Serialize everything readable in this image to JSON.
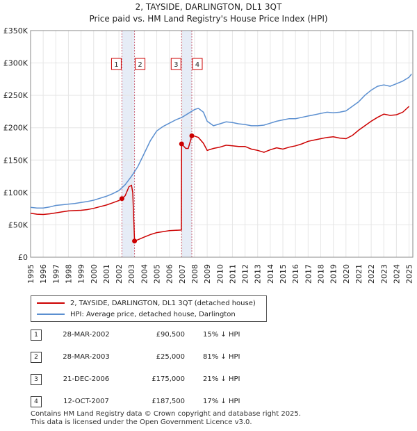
{
  "title_line1": "2, TAYSIDE, DARLINGTON, DL1 3QT",
  "title_line2": "Price paid vs. HM Land Registry's House Price Index (HPI)",
  "chart_data": {
    "type": "line",
    "x_range": [
      1995,
      2025.3
    ],
    "ylim": [
      0,
      350000
    ],
    "y_ticks": [
      0,
      50000,
      100000,
      150000,
      200000,
      250000,
      300000,
      350000
    ],
    "y_tick_labels": [
      "£0",
      "£50K",
      "£100K",
      "£150K",
      "£200K",
      "£250K",
      "£300K",
      "£350K"
    ],
    "x_ticks": [
      1995,
      1996,
      1997,
      1998,
      1999,
      2000,
      2001,
      2002,
      2003,
      2004,
      2005,
      2006,
      2007,
      2008,
      2009,
      2010,
      2011,
      2012,
      2013,
      2014,
      2015,
      2016,
      2017,
      2018,
      2019,
      2020,
      2021,
      2022,
      2023,
      2024,
      2025
    ],
    "grid": true,
    "series": [
      {
        "name": "2, TAYSIDE, DARLINGTON, DL1 3QT (detached house)",
        "color": "#cc0000",
        "points": [
          [
            1995.0,
            68000
          ],
          [
            1995.5,
            66500
          ],
          [
            1996.0,
            66000
          ],
          [
            1996.5,
            67000
          ],
          [
            1997.0,
            68500
          ],
          [
            1997.5,
            70000
          ],
          [
            1998.0,
            71500
          ],
          [
            1998.5,
            72000
          ],
          [
            1999.0,
            72500
          ],
          [
            1999.5,
            73500
          ],
          [
            2000.0,
            75500
          ],
          [
            2000.5,
            78000
          ],
          [
            2001.0,
            80500
          ],
          [
            2001.5,
            84000
          ],
          [
            2002.0,
            87500
          ],
          [
            2002.24,
            90500
          ],
          [
            2002.5,
            95000
          ],
          [
            2002.8,
            109000
          ],
          [
            2003.0,
            111000
          ],
          [
            2003.1,
            100000
          ],
          [
            2003.24,
            25000
          ],
          [
            2003.5,
            27000
          ],
          [
            2004.0,
            31000
          ],
          [
            2004.5,
            35000
          ],
          [
            2005.0,
            38000
          ],
          [
            2005.5,
            39500
          ],
          [
            2006.0,
            41000
          ],
          [
            2006.5,
            41500
          ],
          [
            2006.95,
            42000
          ],
          [
            2006.97,
            175000
          ],
          [
            2007.3,
            168000
          ],
          [
            2007.5,
            168000
          ],
          [
            2007.78,
            187500
          ],
          [
            2008.0,
            187000
          ],
          [
            2008.3,
            185000
          ],
          [
            2008.7,
            176000
          ],
          [
            2009.0,
            165000
          ],
          [
            2009.5,
            168000
          ],
          [
            2010.0,
            170000
          ],
          [
            2010.5,
            173000
          ],
          [
            2011.0,
            172000
          ],
          [
            2011.5,
            171000
          ],
          [
            2012.0,
            171000
          ],
          [
            2012.5,
            167000
          ],
          [
            2013.0,
            165000
          ],
          [
            2013.5,
            162000
          ],
          [
            2014.0,
            166000
          ],
          [
            2014.5,
            169000
          ],
          [
            2015.0,
            167000
          ],
          [
            2015.5,
            170000
          ],
          [
            2016.0,
            172000
          ],
          [
            2016.5,
            175000
          ],
          [
            2017.0,
            179000
          ],
          [
            2017.5,
            181000
          ],
          [
            2018.0,
            183000
          ],
          [
            2018.5,
            185000
          ],
          [
            2019.0,
            186000
          ],
          [
            2019.5,
            184000
          ],
          [
            2020.0,
            183000
          ],
          [
            2020.5,
            188000
          ],
          [
            2021.0,
            196000
          ],
          [
            2021.5,
            203000
          ],
          [
            2022.0,
            210000
          ],
          [
            2022.5,
            216000
          ],
          [
            2023.0,
            221000
          ],
          [
            2023.5,
            219000
          ],
          [
            2024.0,
            220000
          ],
          [
            2024.5,
            224000
          ],
          [
            2025.0,
            233000
          ]
        ]
      },
      {
        "name": "HPI: Average price, detached house, Darlington",
        "color": "#5b8fd0",
        "points": [
          [
            1995.0,
            77000
          ],
          [
            1995.5,
            76000
          ],
          [
            1996.0,
            76000
          ],
          [
            1996.5,
            77500
          ],
          [
            1997.0,
            80000
          ],
          [
            1997.5,
            81000
          ],
          [
            1998.0,
            82000
          ],
          [
            1998.5,
            83000
          ],
          [
            1999.0,
            84500
          ],
          [
            1999.5,
            86000
          ],
          [
            2000.0,
            88000
          ],
          [
            2000.5,
            91000
          ],
          [
            2001.0,
            94000
          ],
          [
            2001.5,
            98000
          ],
          [
            2002.0,
            103000
          ],
          [
            2002.5,
            112000
          ],
          [
            2003.0,
            125000
          ],
          [
            2003.5,
            140000
          ],
          [
            2004.0,
            160000
          ],
          [
            2004.5,
            180000
          ],
          [
            2005.0,
            195000
          ],
          [
            2005.5,
            202000
          ],
          [
            2006.0,
            207000
          ],
          [
            2006.5,
            212000
          ],
          [
            2007.0,
            216000
          ],
          [
            2007.5,
            222000
          ],
          [
            2008.0,
            228000
          ],
          [
            2008.3,
            230000
          ],
          [
            2008.7,
            224000
          ],
          [
            2009.0,
            210000
          ],
          [
            2009.5,
            203000
          ],
          [
            2010.0,
            206000
          ],
          [
            2010.5,
            209000
          ],
          [
            2011.0,
            208000
          ],
          [
            2011.5,
            206000
          ],
          [
            2012.0,
            205000
          ],
          [
            2012.5,
            203000
          ],
          [
            2013.0,
            203000
          ],
          [
            2013.5,
            204000
          ],
          [
            2014.0,
            207000
          ],
          [
            2014.5,
            210000
          ],
          [
            2015.0,
            212000
          ],
          [
            2015.5,
            214000
          ],
          [
            2016.0,
            214000
          ],
          [
            2016.5,
            216000
          ],
          [
            2017.0,
            218000
          ],
          [
            2017.5,
            220000
          ],
          [
            2018.0,
            222000
          ],
          [
            2018.5,
            224000
          ],
          [
            2019.0,
            223000
          ],
          [
            2019.5,
            224000
          ],
          [
            2020.0,
            226000
          ],
          [
            2020.5,
            233000
          ],
          [
            2021.0,
            240000
          ],
          [
            2021.5,
            250000
          ],
          [
            2022.0,
            258000
          ],
          [
            2022.5,
            264000
          ],
          [
            2023.0,
            266000
          ],
          [
            2023.5,
            264000
          ],
          [
            2024.0,
            268000
          ],
          [
            2024.5,
            272000
          ],
          [
            2025.0,
            278000
          ],
          [
            2025.2,
            283000
          ]
        ]
      }
    ],
    "sale_markers": [
      {
        "label": "1",
        "date": 2002.24,
        "price": 90500
      },
      {
        "label": "2",
        "date": 2003.24,
        "price": 25000
      },
      {
        "label": "3",
        "date": 2006.97,
        "price": 175000
      },
      {
        "label": "4",
        "date": 2007.78,
        "price": 187500
      }
    ],
    "shaded_periods": [
      [
        2002.24,
        2003.24
      ],
      [
        2006.97,
        2007.78
      ]
    ]
  },
  "legend": {
    "property_label": "2, TAYSIDE, DARLINGTON, DL1 3QT (detached house)",
    "hpi_label": "HPI: Average price, detached house, Darlington",
    "property_color": "#cc0000",
    "hpi_color": "#5b8fd0"
  },
  "transactions": [
    {
      "num": "1",
      "date": "28-MAR-2002",
      "price": "£90,500",
      "hpi": "15% ↓ HPI"
    },
    {
      "num": "2",
      "date": "28-MAR-2003",
      "price": "£25,000",
      "hpi": "81% ↓ HPI"
    },
    {
      "num": "3",
      "date": "21-DEC-2006",
      "price": "£175,000",
      "hpi": "21% ↓ HPI"
    },
    {
      "num": "4",
      "date": "12-OCT-2007",
      "price": "£187,500",
      "hpi": "17% ↓ HPI"
    }
  ],
  "footer_line1": "Contains HM Land Registry data © Crown copyright and database right 2025.",
  "footer_line2": "This data is licensed under the Open Government Licence v3.0."
}
